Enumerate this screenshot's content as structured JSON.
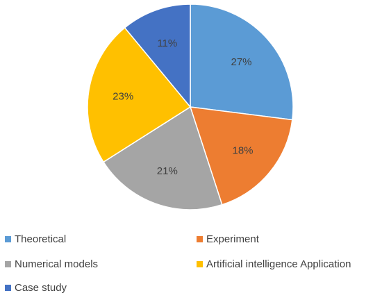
{
  "chart_data": {
    "type": "pie",
    "title": "",
    "categories": [
      "Theoretical",
      "Experiment",
      "Numerical models",
      "Artificial intelligence Application",
      "Case study"
    ],
    "values": [
      27,
      18,
      21,
      23,
      11
    ],
    "value_labels": [
      "27%",
      "18%",
      "21%",
      "23%",
      "11%"
    ],
    "colors": [
      "#5B9BD5",
      "#ED7D31",
      "#A5A5A5",
      "#FFC000",
      "#4472C4"
    ],
    "legend_position": "bottom",
    "start_angle": "top, clockwise"
  }
}
